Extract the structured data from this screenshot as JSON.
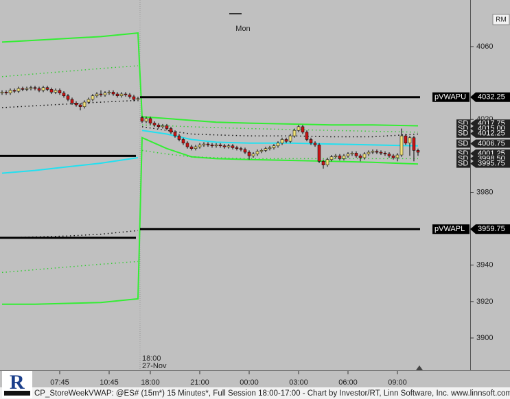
{
  "chart_data": {
    "type": "candlestick",
    "corner_label": "RM",
    "status": "CP_StoreWeekVWAP: @ES# (15m*) 15 Minutes*, Full Session 18:00-17:00 - Chart by Investor/RT, Linn Software, Inc. www.linnsoft.com - 28-N",
    "xlim": [
      -0.5,
      113.67
    ],
    "ylim": [
      3882.3,
      4085.6
    ],
    "yticks": [
      3900,
      3920,
      3940,
      3960,
      3980,
      4020,
      4060
    ],
    "xticks": [
      {
        "value": 14,
        "label": "07:45"
      },
      {
        "value": 26,
        "label": "10:45"
      },
      {
        "value": 36,
        "label": "18:00"
      },
      {
        "value": 48,
        "label": "21:00"
      },
      {
        "value": 60,
        "label": "00:00"
      },
      {
        "value": 72,
        "label": "03:00"
      },
      {
        "value": 84,
        "label": "06:00"
      },
      {
        "value": 96,
        "label": "09:00"
      }
    ],
    "up_color": "#f2e27a",
    "down_color": "#c81414",
    "open": [
      4034.5,
      4035,
      4034.5,
      4036,
      4035.5,
      4037,
      4036.5,
      4037,
      4037.5,
      4037,
      4036,
      4037.5,
      4036.5,
      4035,
      4036,
      4034.5,
      4033,
      4031,
      4029,
      4028,
      4027,
      4029.5,
      4031,
      4033,
      4034,
      4033.5,
      4034.5,
      4035,
      4034,
      4033,
      4034,
      4033.5,
      4032.5,
      4031,
      4021,
      4019,
      4020.5,
      4018,
      4017,
      4016,
      4016.5,
      4015,
      4013,
      4011,
      4009,
      4007,
      4005,
      4004,
      4005,
      4006,
      4006.5,
      4006,
      4005.5,
      4006,
      4005.5,
      4005,
      4005.5,
      4004.5,
      4004,
      4003.5,
      4002,
      4000,
      4001,
      4002.5,
      4003,
      4004,
      4004.5,
      4005.5,
      4007,
      4009,
      4008,
      4011,
      4014,
      4016,
      4013,
      4009,
      4007,
      4006,
      3997,
      3995,
      3998,
      3999.5,
      4000,
      3998.5,
      4000,
      4001,
      4001.5,
      4000,
      3999,
      4001,
      4002,
      4002.5,
      4002,
      4001.5,
      4001,
      4000,
      3999,
      4000.5,
      4011,
      4007,
      4010,
      4003
    ],
    "high": [
      4036,
      4036,
      4037,
      4037,
      4038,
      4038,
      4038,
      4038.5,
      4038.5,
      4038,
      4038.5,
      4038.5,
      4037.5,
      4037,
      4037,
      4035.5,
      4034,
      4032,
      4030,
      4029,
      4030.5,
      4032,
      4034,
      4035,
      4036,
      4035.5,
      4036,
      4036,
      4035,
      4035,
      4035,
      4034.5,
      4033.5,
      4032.5,
      4022,
      4021.5,
      4021.5,
      4019,
      4018,
      4017.5,
      4017.5,
      4016,
      4014,
      4012,
      4010,
      4008,
      4006,
      4006,
      4007,
      4007.5,
      4007.5,
      4007,
      4007,
      4007,
      4006.5,
      4006.5,
      4006.5,
      4005.5,
      4005,
      4004.5,
      4003,
      4002,
      4003.5,
      4004,
      4005,
      4005.5,
      4006.5,
      4008,
      4010,
      4010,
      4012,
      4015,
      4017,
      4017,
      4014,
      4010,
      4008,
      4007,
      3998,
      3999,
      4000.5,
      4001,
      4001,
      4001,
      4002,
      4002.5,
      4002.5,
      4001,
      4002,
      4003,
      4003.5,
      4003.5,
      4003,
      4002.5,
      4002,
      4001,
      4001.5,
      4015,
      4012,
      4011,
      4011,
      4004
    ],
    "low": [
      4033.5,
      4033.5,
      4033.5,
      4034.5,
      4034.5,
      4035.5,
      4035.5,
      4036,
      4036,
      4035,
      4035,
      4035.5,
      4034,
      4034,
      4033.5,
      4032,
      4030,
      4028,
      4027,
      4025,
      4026,
      4028.5,
      4030,
      4032,
      4032.5,
      4032.5,
      4033.5,
      4033,
      4032,
      4032,
      4032.5,
      4031.5,
      4030,
      4030,
      4018,
      4018,
      4017,
      4016,
      4015,
      4015,
      4014,
      4012,
      4010,
      4008,
      4006,
      4004,
      4003,
      4003,
      4004,
      4005,
      4005,
      4004.5,
      4004.5,
      4004.5,
      4004,
      4004,
      4003.5,
      4003,
      4002.5,
      4001,
      3998,
      3999,
      4000,
      4001.5,
      4002,
      4003,
      4003.5,
      4004.5,
      4006,
      4007,
      4007,
      4010,
      4013,
      4012,
      4008,
      4006,
      4005,
      3996,
      3993,
      3994,
      3997,
      3998.5,
      3997.5,
      3997.5,
      3999,
      4000,
      3999,
      3997,
      3998,
      4000,
      4001,
      4001,
      4000.5,
      4000,
      3999,
      3998,
      3997,
      3999.5,
      4006,
      4000,
      3997,
      4000
    ],
    "close": [
      4035,
      4034.5,
      4036,
      4035.5,
      4037,
      4036.5,
      4037,
      4037.5,
      4037,
      4036,
      4037.5,
      4036.5,
      4035,
      4036,
      4034.5,
      4033,
      4031,
      4029,
      4028,
      4027,
      4029.5,
      4031,
      4033,
      4034,
      4033.5,
      4034.5,
      4035,
      4034,
      4033,
      4034,
      4033.5,
      4032.5,
      4031,
      4031.5,
      4019,
      4020.5,
      4018,
      4017,
      4016,
      4016.5,
      4015,
      4013,
      4011,
      4009,
      4007,
      4005,
      4004,
      4005,
      4006,
      4006.5,
      4006,
      4005.5,
      4006,
      4005.5,
      4005,
      4005.5,
      4004.5,
      4004,
      4003.5,
      4002,
      4000,
      4001,
      4002.5,
      4003,
      4004,
      4004.5,
      4005.5,
      4007,
      4009,
      4008,
      4011,
      4014,
      4016,
      4013,
      4009,
      4007,
      4006,
      3997,
      3995,
      3998,
      3999.5,
      4000,
      3998.5,
      4000,
      4001,
      4001.5,
      4000,
      3999,
      4001,
      4002,
      4002.5,
      4002,
      4001.5,
      4001,
      4000,
      3999,
      4000.5,
      4011,
      4007,
      4010,
      4003,
      4002
    ],
    "series": [
      {
        "color": "#33ee33",
        "style": "solid",
        "x": [
          0,
          8,
          16,
          24,
          33,
          34,
          40,
          46,
          52,
          60,
          70,
          80,
          90,
          101
        ],
        "values": [
          4062.5,
          4063.5,
          4064.5,
          4065.5,
          4067.5,
          4021.5,
          4020.5,
          4019.5,
          4018.5,
          4018,
          4017.5,
          4017,
          4017,
          4016.5
        ]
      },
      {
        "color": "#33ee33",
        "style": "solid",
        "x": [
          0,
          8,
          16,
          24,
          33,
          34,
          40,
          46,
          52,
          60,
          70,
          80,
          90,
          101
        ],
        "values": [
          3918.5,
          3918.5,
          3919,
          3919.5,
          3921.5,
          4010,
          4004,
          3999.5,
          3998.5,
          3998,
          3997.5,
          3997,
          3996.5,
          3995.5
        ]
      },
      {
        "color": "#22e0f0",
        "style": "solid",
        "x": [
          0,
          8,
          16,
          24,
          33
        ],
        "values": [
          3990.5,
          3992,
          3994,
          3996,
          3999
        ]
      },
      {
        "color": "#22e0f0",
        "style": "solid",
        "x": [
          34,
          40,
          46,
          52,
          60,
          70,
          80,
          90,
          101
        ],
        "values": [
          4014,
          4012,
          4009,
          4007.5,
          4007,
          4007,
          4006.5,
          4006,
          4005.5
        ]
      },
      {
        "color": "#33cc33",
        "style": "dotted",
        "x": [
          0,
          8,
          16,
          24,
          33
        ],
        "values": [
          4043.5,
          4045,
          4046.5,
          4048,
          4049.5
        ]
      },
      {
        "color": "#33cc33",
        "style": "dotted",
        "x": [
          0,
          8,
          16,
          24,
          33
        ],
        "values": [
          3936,
          3937.5,
          3939,
          3940.5,
          3942
        ]
      },
      {
        "color": "#33cc33",
        "style": "dotted",
        "x": [
          34,
          40,
          46,
          52,
          60,
          70,
          80,
          90,
          101
        ],
        "values": [
          4017,
          4016.5,
          4016,
          4015.5,
          4015,
          4014.5,
          4014,
          4013.5,
          4013
        ]
      },
      {
        "color": "#33cc33",
        "style": "dotted",
        "x": [
          34,
          40,
          46,
          52,
          60,
          70,
          80,
          90,
          101
        ],
        "values": [
          4003,
          4001,
          3999.5,
          3999,
          3998.5,
          3998.5,
          3998.5,
          3998.5,
          3998.5
        ]
      },
      {
        "color": "#111111",
        "style": "dotted",
        "x": [
          0,
          8,
          16,
          24,
          33
        ],
        "values": [
          4026.5,
          4027.5,
          4028.5,
          4029.5,
          4030.5
        ]
      },
      {
        "color": "#111111",
        "style": "dotted",
        "x": [
          0,
          8,
          16,
          24,
          33
        ],
        "values": [
          3955,
          3955.5,
          3956,
          3957,
          3959
        ]
      },
      {
        "color": "#111111",
        "style": "dotted",
        "x": [
          34,
          40,
          46,
          52,
          60,
          70,
          80,
          90,
          101
        ],
        "values": [
          4016,
          4014,
          4012,
          4011.5,
          4011,
          4011,
          4010.5,
          4010.5,
          4012
        ]
      }
    ],
    "levels": [
      {
        "label": "pVWAPU",
        "value": 4032.25,
        "x": [
          33.5,
          101.5
        ]
      },
      {
        "label": "pVWAPL",
        "value": 3959.75,
        "x": [
          33.5,
          101.5
        ]
      },
      {
        "value": 4000,
        "x": [
          -0.5,
          32.5
        ]
      },
      {
        "value": 3955,
        "x": [
          -0.5,
          32.5
        ]
      }
    ],
    "sd": {
      "label": "SD",
      "values": [
        4017.75,
        4015,
        4012.25,
        4006.75,
        4001.25,
        3998.5,
        3995.75
      ],
      "value_labels": [
        "4017.75",
        "4015.00",
        "4012.25",
        "4006.75",
        "4001.25",
        "3998.50",
        "3995.75"
      ]
    },
    "annotations": [
      {
        "text": "Mon",
        "x": 58.5
      },
      {
        "text": "18:00",
        "subtext": "27-Nov",
        "x": 33.5
      }
    ]
  }
}
